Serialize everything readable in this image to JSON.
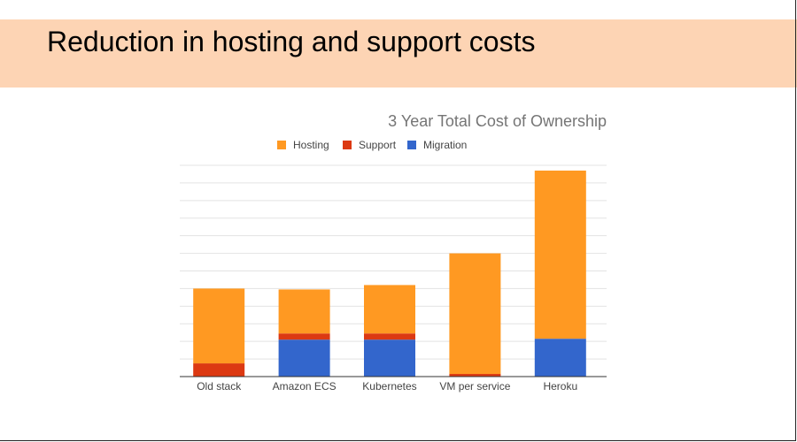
{
  "slide": {
    "title": "Reduction in hosting and support costs"
  },
  "chart_data": {
    "type": "bar",
    "stacked": true,
    "title": "3 Year Total Cost of Ownership",
    "xlabel": "",
    "ylabel": "",
    "categories": [
      "Old stack",
      "Amazon ECS",
      "Kubernetes",
      "VM per service",
      "Heroku"
    ],
    "series": [
      {
        "name": "Migration",
        "color": "#3366cc",
        "values": [
          0,
          21,
          21,
          0,
          21.5
        ]
      },
      {
        "name": "Support",
        "color": "#dc3912",
        "values": [
          7.5,
          3.5,
          3.5,
          1.5,
          0
        ]
      },
      {
        "name": "Hosting",
        "color": "#ff9922",
        "values": [
          42.5,
          25,
          27.5,
          68.5,
          95.5
        ]
      }
    ],
    "legend_order": [
      "Hosting",
      "Support",
      "Migration"
    ],
    "ylim": [
      0,
      120
    ],
    "ytick_step": 10,
    "grid": true,
    "legend_position": "top"
  }
}
